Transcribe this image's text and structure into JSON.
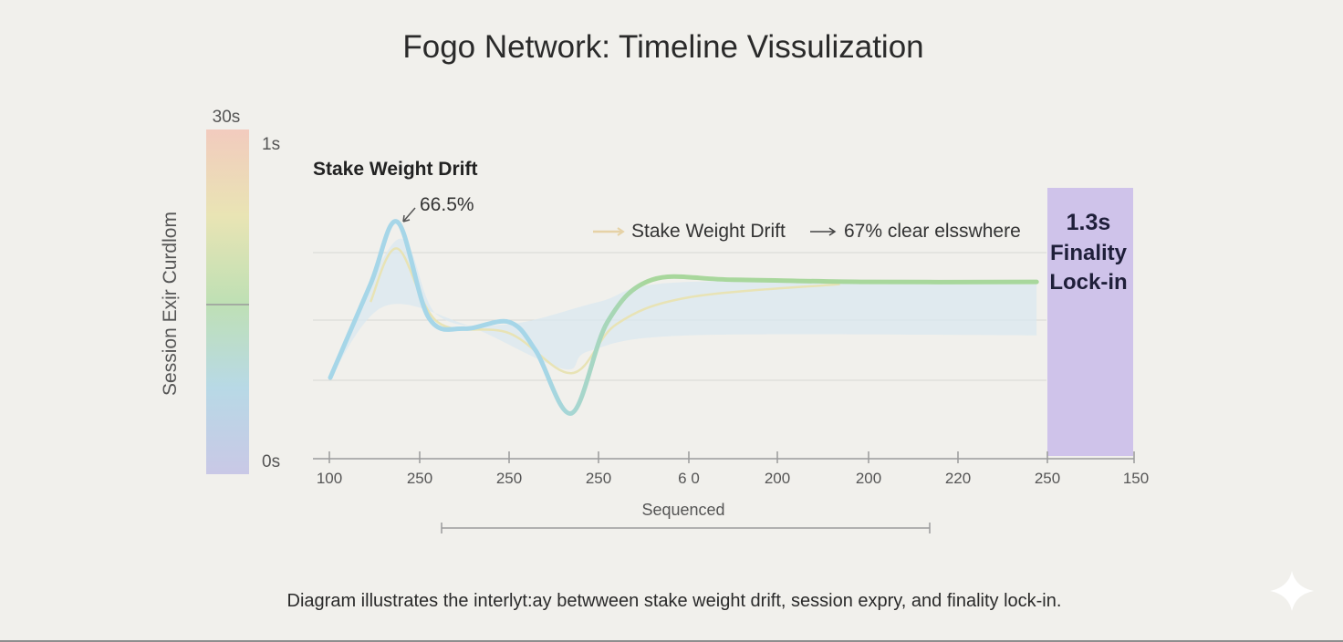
{
  "chart_data": {
    "type": "line",
    "title": "Fogo Network: Timeline Vissulization",
    "xlabel": "Sequenced",
    "ylabel": "Session Exịr Curdlom",
    "x_ticks": [
      "100",
      "250",
      "250",
      "250",
      "6 0",
      "200",
      "200",
      "220",
      "250",
      "150"
    ],
    "color_scale": {
      "top_label": "30s",
      "upper_label": "1s",
      "bottom_label": "0s",
      "colors": [
        "#f2cbbe",
        "#e9e4b4",
        "#bfe0b4",
        "#b8d9e6",
        "#c9c8e6"
      ]
    },
    "series": [
      {
        "name": "Stake Weight Drift",
        "color": "#a6d6e8",
        "color_end": "#a8d79c",
        "points": [
          [
            0.0,
            0.18
          ],
          [
            0.45,
            0.6
          ],
          [
            0.75,
            0.88
          ],
          [
            1.1,
            0.45
          ],
          [
            1.5,
            0.4
          ],
          [
            2.0,
            0.43
          ],
          [
            2.3,
            0.3
          ],
          [
            2.7,
            0.02
          ],
          [
            3.1,
            0.43
          ],
          [
            3.6,
            0.62
          ],
          [
            4.5,
            0.62
          ],
          [
            6.0,
            0.61
          ],
          [
            7.9,
            0.61
          ]
        ]
      },
      {
        "color": "#e8e3b5",
        "points": [
          [
            0.45,
            0.52
          ],
          [
            0.75,
            0.76
          ],
          [
            1.2,
            0.43
          ],
          [
            2.0,
            0.38
          ],
          [
            2.7,
            0.2
          ],
          [
            3.2,
            0.42
          ],
          [
            4.0,
            0.54
          ],
          [
            5.7,
            0.6
          ]
        ]
      }
    ],
    "band": {
      "color": "#d9e8f0",
      "upper": [
        [
          0.0,
          0.18
        ],
        [
          0.75,
          0.8
        ],
        [
          1.2,
          0.46
        ],
        [
          2.0,
          0.42
        ],
        [
          3.0,
          0.52
        ],
        [
          4.0,
          0.61
        ],
        [
          7.9,
          0.6
        ]
      ],
      "lower": [
        [
          7.9,
          0.37
        ],
        [
          4.0,
          0.37
        ],
        [
          2.9,
          0.3
        ],
        [
          2.6,
          0.22
        ],
        [
          1.5,
          0.42
        ],
        [
          0.6,
          0.5
        ],
        [
          0.0,
          0.18
        ]
      ]
    },
    "annotations": {
      "peak_label": "Stake Weight Drift",
      "peak_value": "66.5%",
      "legend_line1": "Stake Weight Drift",
      "legend_line2": "67% clear elsswhere"
    },
    "finality": {
      "line1": "1.3s",
      "line2": "Finality",
      "line3": "Lock-in",
      "color": "#cfc3ea"
    },
    "caption": "Diagram illustrates the interlyt:ay betwween stake weight drift, session expry, and finality lock-in."
  }
}
